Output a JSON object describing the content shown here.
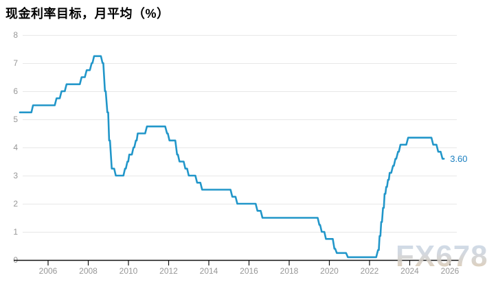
{
  "header": {
    "title": "现金利率目标，月平均（%）"
  },
  "watermark": {
    "text": "FX678"
  },
  "colors": {
    "line": "#2196c9",
    "grid": "#e7e7e7",
    "axis": "#111111",
    "tick_label": "#979797",
    "end_label": "#1a7fc0",
    "title": "#000000"
  },
  "chart_data": {
    "type": "line",
    "title": "现金利率目标，月平均（%）",
    "xlabel": "",
    "ylabel": "",
    "ylim": [
      0,
      8
    ],
    "xlim": [
      2004.6,
      2026.35
    ],
    "y_ticks": [
      0,
      1,
      2,
      3,
      4,
      5,
      6,
      7,
      8
    ],
    "x_ticks": [
      2006,
      2008,
      2010,
      2012,
      2014,
      2016,
      2018,
      2020,
      2022,
      2024,
      2026
    ],
    "grid": "horizontal",
    "legend": "none",
    "series": [
      {
        "name": "现金利率目标",
        "end_label": "3.60",
        "end_value": 3.6,
        "points": [
          [
            2004.6,
            5.25
          ],
          [
            2005.17,
            5.25
          ],
          [
            2005.25,
            5.5
          ],
          [
            2006.33,
            5.5
          ],
          [
            2006.42,
            5.75
          ],
          [
            2006.58,
            5.75
          ],
          [
            2006.67,
            6.0
          ],
          [
            2006.83,
            6.0
          ],
          [
            2006.92,
            6.25
          ],
          [
            2007.58,
            6.25
          ],
          [
            2007.67,
            6.5
          ],
          [
            2007.83,
            6.5
          ],
          [
            2007.92,
            6.75
          ],
          [
            2008.08,
            6.75
          ],
          [
            2008.17,
            7.0
          ],
          [
            2008.21,
            7.0
          ],
          [
            2008.29,
            7.25
          ],
          [
            2008.63,
            7.25
          ],
          [
            2008.71,
            7.0
          ],
          [
            2008.75,
            7.0
          ],
          [
            2008.83,
            6.0
          ],
          [
            2008.87,
            6.0
          ],
          [
            2008.95,
            5.25
          ],
          [
            2008.99,
            5.25
          ],
          [
            2009.04,
            4.25
          ],
          [
            2009.08,
            4.25
          ],
          [
            2009.17,
            3.25
          ],
          [
            2009.29,
            3.25
          ],
          [
            2009.37,
            3.0
          ],
          [
            2009.75,
            3.0
          ],
          [
            2009.83,
            3.25
          ],
          [
            2009.87,
            3.25
          ],
          [
            2009.95,
            3.5
          ],
          [
            2009.99,
            3.5
          ],
          [
            2010.04,
            3.75
          ],
          [
            2010.17,
            3.75
          ],
          [
            2010.25,
            4.0
          ],
          [
            2010.29,
            4.0
          ],
          [
            2010.37,
            4.25
          ],
          [
            2010.41,
            4.25
          ],
          [
            2010.46,
            4.5
          ],
          [
            2010.83,
            4.5
          ],
          [
            2010.92,
            4.75
          ],
          [
            2011.83,
            4.75
          ],
          [
            2011.92,
            4.5
          ],
          [
            2011.96,
            4.5
          ],
          [
            2012.04,
            4.25
          ],
          [
            2012.33,
            4.25
          ],
          [
            2012.42,
            3.75
          ],
          [
            2012.46,
            3.75
          ],
          [
            2012.54,
            3.5
          ],
          [
            2012.75,
            3.5
          ],
          [
            2012.83,
            3.25
          ],
          [
            2012.92,
            3.25
          ],
          [
            2013.0,
            3.0
          ],
          [
            2013.33,
            3.0
          ],
          [
            2013.42,
            2.75
          ],
          [
            2013.58,
            2.75
          ],
          [
            2013.67,
            2.5
          ],
          [
            2015.08,
            2.5
          ],
          [
            2015.17,
            2.25
          ],
          [
            2015.33,
            2.25
          ],
          [
            2015.42,
            2.0
          ],
          [
            2016.33,
            2.0
          ],
          [
            2016.42,
            1.75
          ],
          [
            2016.58,
            1.75
          ],
          [
            2016.67,
            1.5
          ],
          [
            2019.42,
            1.5
          ],
          [
            2019.5,
            1.25
          ],
          [
            2019.54,
            1.25
          ],
          [
            2019.62,
            1.0
          ],
          [
            2019.75,
            1.0
          ],
          [
            2019.83,
            0.75
          ],
          [
            2020.17,
            0.75
          ],
          [
            2020.25,
            0.4
          ],
          [
            2020.29,
            0.4
          ],
          [
            2020.37,
            0.25
          ],
          [
            2020.83,
            0.25
          ],
          [
            2020.92,
            0.1
          ],
          [
            2022.33,
            0.1
          ],
          [
            2022.42,
            0.35
          ],
          [
            2022.46,
            0.35
          ],
          [
            2022.5,
            0.85
          ],
          [
            2022.54,
            0.85
          ],
          [
            2022.58,
            1.35
          ],
          [
            2022.62,
            1.35
          ],
          [
            2022.67,
            1.85
          ],
          [
            2022.71,
            1.85
          ],
          [
            2022.75,
            2.35
          ],
          [
            2022.79,
            2.35
          ],
          [
            2022.83,
            2.6
          ],
          [
            2022.87,
            2.6
          ],
          [
            2022.92,
            2.85
          ],
          [
            2022.96,
            2.85
          ],
          [
            2023.0,
            3.1
          ],
          [
            2023.08,
            3.1
          ],
          [
            2023.17,
            3.35
          ],
          [
            2023.21,
            3.35
          ],
          [
            2023.29,
            3.6
          ],
          [
            2023.33,
            3.6
          ],
          [
            2023.42,
            3.85
          ],
          [
            2023.46,
            3.85
          ],
          [
            2023.54,
            4.1
          ],
          [
            2023.83,
            4.1
          ],
          [
            2023.92,
            4.35
          ],
          [
            2025.08,
            4.35
          ],
          [
            2025.17,
            4.1
          ],
          [
            2025.33,
            4.1
          ],
          [
            2025.42,
            3.85
          ],
          [
            2025.54,
            3.85
          ],
          [
            2025.63,
            3.6
          ],
          [
            2025.7,
            3.6
          ]
        ]
      }
    ]
  }
}
